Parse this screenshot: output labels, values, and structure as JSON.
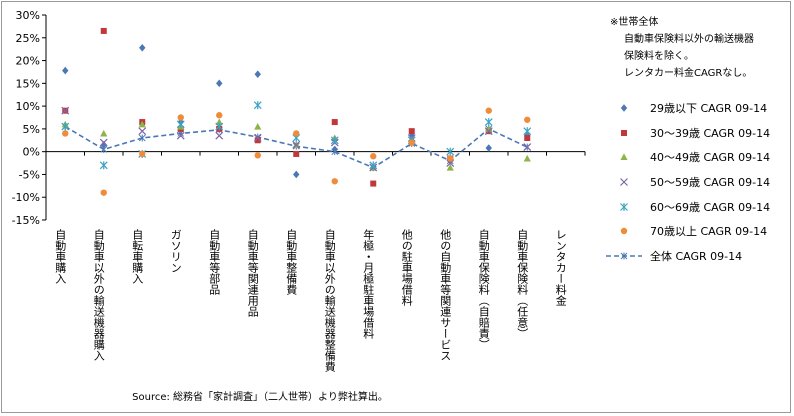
{
  "chart_data": {
    "type": "scatter",
    "title": "",
    "xlabel": "",
    "ylabel": "",
    "ylim": [
      -15,
      30
    ],
    "y_ticks": [
      "30%",
      "25%",
      "20%",
      "15%",
      "10%",
      "5%",
      "0%",
      "-5%",
      "-10%",
      "-15%"
    ],
    "grid": false,
    "legend_position": "right",
    "categories": [
      "自動車購入",
      "自動車以外の輸送機器購入",
      "自転車購入",
      "ガソリン",
      "自動車等部品",
      "自動車等関連用品",
      "自動車整備費",
      "自動車以外の輸送機器整備費",
      "年極・月極駐車場借料",
      "他の駐車場借料",
      "他の自動車等関連サービス",
      "自動車保険料（自賠責）",
      "自動車保険料（任意）",
      "レンタカー料金"
    ],
    "series": [
      {
        "name": "29歳以下 CAGR 09-14",
        "color": "#4a78b5",
        "marker": "diamond",
        "values": [
          17.8,
          1.5,
          22.8,
          6.5,
          15.0,
          17.0,
          -5.0,
          0.5,
          -3.5,
          3.5,
          -2.0,
          0.8,
          3.5,
          null
        ]
      },
      {
        "name": "30～39歳 CAGR 09-14",
        "color": "#c0383a",
        "marker": "square",
        "values": [
          9.0,
          26.5,
          6.5,
          5.0,
          5.0,
          2.5,
          -0.5,
          6.5,
          -7.0,
          4.5,
          -1.5,
          4.5,
          3.0,
          null
        ]
      },
      {
        "name": "40～49歳 CAGR 09-14",
        "color": "#8cb449",
        "marker": "triangle",
        "values": [
          6.0,
          4.0,
          6.0,
          5.5,
          6.5,
          5.5,
          1.5,
          3.0,
          -3.5,
          2.5,
          -3.5,
          5.0,
          -1.5,
          null
        ]
      },
      {
        "name": "50～59歳 CAGR 09-14",
        "color": "#7f67a6",
        "marker": "x",
        "values": [
          9.0,
          2.0,
          4.5,
          3.5,
          3.5,
          3.0,
          1.5,
          2.0,
          -3.5,
          3.0,
          -2.5,
          4.5,
          1.0,
          null
        ]
      },
      {
        "name": "60～69歳 CAGR 09-14",
        "color": "#3ba2c4",
        "marker": "star",
        "values": [
          5.5,
          -3.0,
          -0.5,
          6.0,
          5.5,
          10.2,
          3.0,
          2.5,
          -3.0,
          2.5,
          0.0,
          6.5,
          4.5,
          null
        ]
      },
      {
        "name": "70歳以上 CAGR 09-14",
        "color": "#ef8c3a",
        "marker": "circle",
        "values": [
          4.0,
          -9.0,
          -0.5,
          7.5,
          8.0,
          -0.8,
          4.0,
          -6.5,
          -1.0,
          2.0,
          -1.5,
          9.0,
          7.0,
          null
        ]
      }
    ],
    "line_series": {
      "name": "全体 CAGR 09-14",
      "color": "#4a78b5",
      "values": [
        5.5,
        0.5,
        3.0,
        4.0,
        4.8,
        3.2,
        1.2,
        0.0,
        -3.5,
        1.8,
        -2.0,
        5.0,
        1.0,
        null
      ]
    }
  },
  "notes": {
    "line1": "※世帯全体",
    "line2": "自動車保険料以外の輸送機器",
    "line3": "保険料を除く。",
    "line4": "レンタカー料金CAGRなし。"
  },
  "source": "Source: 総務省「家計調査」（二人世帯）より弊社算出。"
}
